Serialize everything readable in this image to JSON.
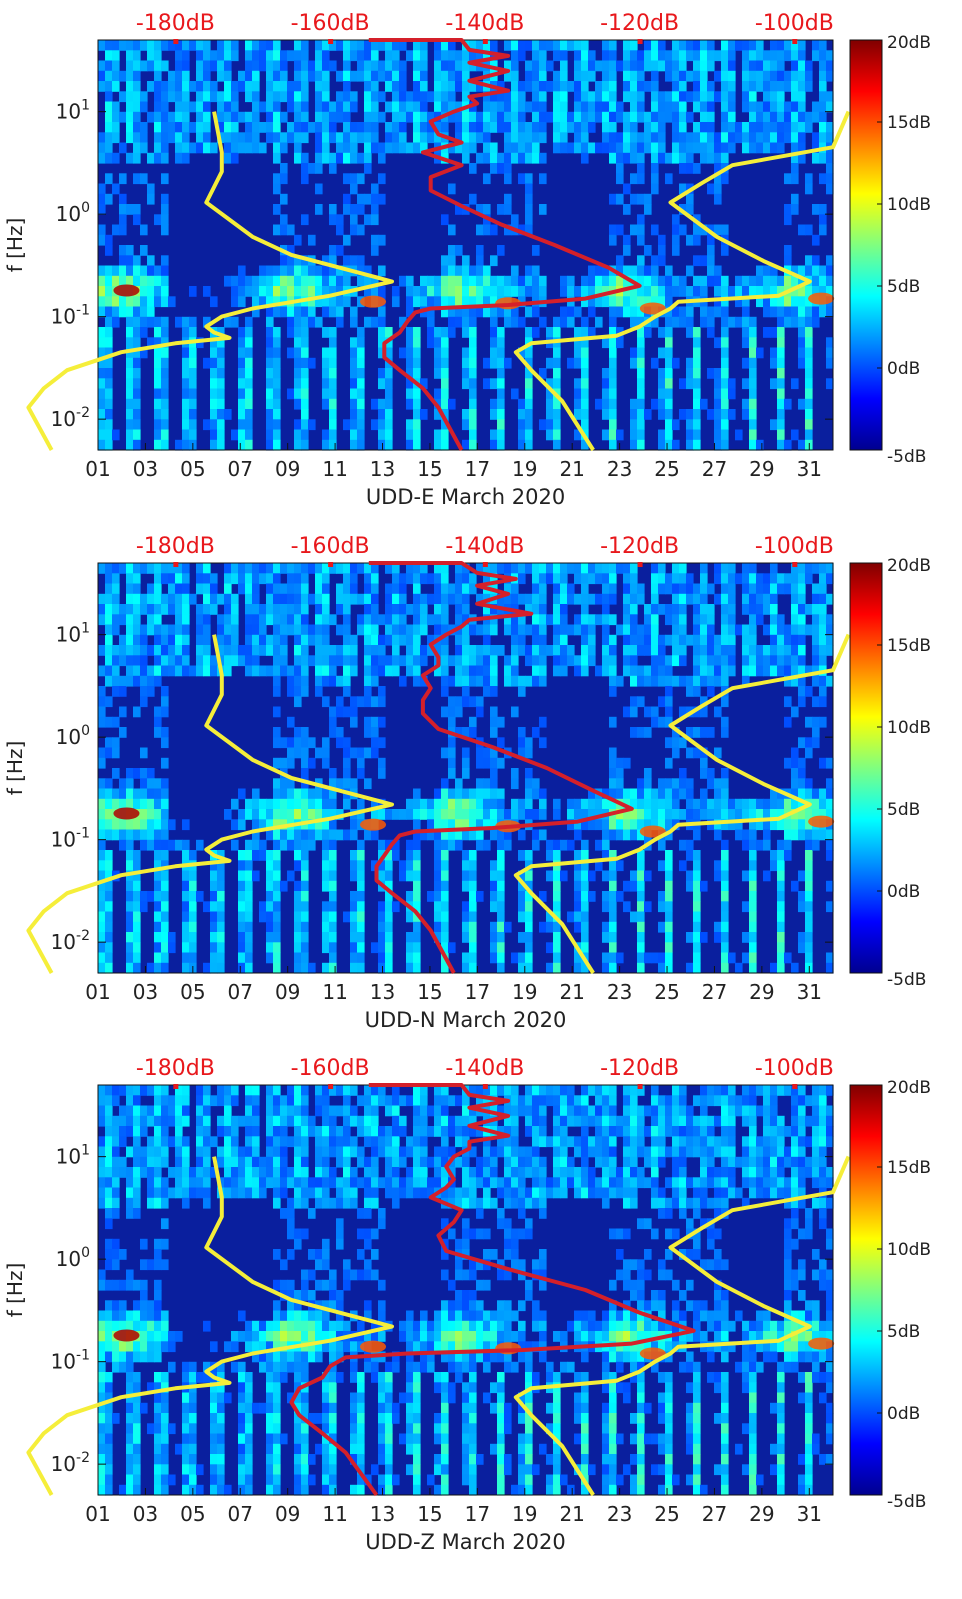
{
  "chart_data": [
    {
      "type": "heatmap",
      "title": "",
      "xlabel": "UDD-E March 2020",
      "ylabel": "f [Hz]",
      "x_ticks": [
        "01",
        "03",
        "05",
        "07",
        "09",
        "11",
        "13",
        "15",
        "17",
        "19",
        "21",
        "23",
        "25",
        "27",
        "29",
        "31"
      ],
      "y_ticks": [
        "10^-2",
        "10^-1",
        "10^0",
        "10^1"
      ],
      "xlim": [
        1,
        32
      ],
      "ylim_hz": [
        0.005,
        50
      ],
      "colorbar_label_ticks": [
        "20dB",
        "15dB",
        "10dB",
        "5dB",
        "0dB",
        "-5dB"
      ],
      "colorbar_range_db": [
        -5,
        20
      ],
      "top_axis_ticks": [
        "-180dB",
        "-160dB",
        "-140dB",
        "-120dB",
        "-100dB"
      ],
      "top_axis_range_db": [
        -190,
        -95
      ],
      "colors": {
        "noise_model": "#f5ee3a",
        "psd_curve": "#d4202a",
        "top_axis": "#e8181c"
      },
      "series": [
        {
          "name": "noise-model-low",
          "color": "#f5ee3a",
          "points": [
            [
              -175,
              10
            ],
            [
              -174,
              4
            ],
            [
              -174,
              2.6
            ],
            [
              -176,
              1.3
            ],
            [
              -170,
              0.6
            ],
            [
              -165,
              0.4
            ],
            [
              -152,
              0.22
            ],
            [
              -160,
              0.16
            ],
            [
              -170,
              0.12
            ],
            [
              -174,
              0.1
            ],
            [
              -176,
              0.08
            ],
            [
              -175,
              0.07
            ],
            [
              -173,
              0.062
            ],
            [
              -180,
              0.055
            ],
            [
              -187,
              0.045
            ],
            [
              -194,
              0.03
            ],
            [
              -197,
              0.02
            ],
            [
              -199,
              0.013
            ],
            [
              -196,
              0.005
            ]
          ]
        },
        {
          "name": "noise-model-high",
          "color": "#f5ee3a",
          "points": [
            [
              -93,
              10
            ],
            [
              -95,
              4.5
            ],
            [
              -108,
              3
            ],
            [
              -112,
              2
            ],
            [
              -116,
              1.3
            ],
            [
              -110,
              0.6
            ],
            [
              -104,
              0.35
            ],
            [
              -98,
              0.22
            ],
            [
              -102,
              0.16
            ],
            [
              -115,
              0.14
            ],
            [
              -116,
              0.12
            ],
            [
              -118,
              0.1
            ],
            [
              -120,
              0.08
            ],
            [
              -123,
              0.065
            ],
            [
              -134,
              0.055
            ],
            [
              -136,
              0.045
            ],
            [
              -134,
              0.03
            ],
            [
              -130,
              0.015
            ],
            [
              -126,
              0.005
            ]
          ]
        },
        {
          "name": "psd-curve",
          "color": "#d4202a",
          "points": [
            [
              -155,
              50
            ],
            [
              -143,
              50
            ],
            [
              -142,
              40
            ],
            [
              -137,
              35
            ],
            [
              -142,
              30
            ],
            [
              -137,
              25
            ],
            [
              -142,
              20
            ],
            [
              -137,
              16
            ],
            [
              -142,
              14
            ],
            [
              -141,
              12
            ],
            [
              -144,
              10
            ],
            [
              -147,
              8
            ],
            [
              -146,
              6
            ],
            [
              -143,
              5
            ],
            [
              -148,
              4
            ],
            [
              -143,
              3
            ],
            [
              -147,
              2.3
            ],
            [
              -147,
              1.7
            ],
            [
              -143,
              1.2
            ],
            [
              -138,
              0.8
            ],
            [
              -131,
              0.5
            ],
            [
              -124,
              0.3
            ],
            [
              -120,
              0.2
            ],
            [
              -127,
              0.15
            ],
            [
              -137,
              0.13
            ],
            [
              -147,
              0.12
            ],
            [
              -149,
              0.11
            ],
            [
              -150,
              0.09
            ],
            [
              -151,
              0.07
            ],
            [
              -153,
              0.055
            ],
            [
              -153,
              0.04
            ],
            [
              -151,
              0.03
            ],
            [
              -148,
              0.02
            ],
            [
              -146,
              0.013
            ],
            [
              -143,
              0.005
            ]
          ]
        }
      ]
    },
    {
      "type": "heatmap",
      "title": "",
      "xlabel": "UDD-N March 2020",
      "ylabel": "f [Hz]",
      "x_ticks": [
        "01",
        "03",
        "05",
        "07",
        "09",
        "11",
        "13",
        "15",
        "17",
        "19",
        "21",
        "23",
        "25",
        "27",
        "29",
        "31"
      ],
      "y_ticks": [
        "10^-2",
        "10^-1",
        "10^0",
        "10^1"
      ],
      "xlim": [
        1,
        32
      ],
      "ylim_hz": [
        0.005,
        50
      ],
      "colorbar_label_ticks": [
        "20dB",
        "15dB",
        "10dB",
        "5dB",
        "0dB",
        "-5dB"
      ],
      "colorbar_range_db": [
        -5,
        20
      ],
      "top_axis_ticks": [
        "-180dB",
        "-160dB",
        "-140dB",
        "-120dB",
        "-100dB"
      ],
      "top_axis_range_db": [
        -190,
        -95
      ],
      "colors": {
        "noise_model": "#f5ee3a",
        "psd_curve": "#d4202a",
        "top_axis": "#e8181c"
      },
      "series": [
        {
          "name": "noise-model-low",
          "color": "#f5ee3a",
          "points": [
            [
              -175,
              10
            ],
            [
              -174,
              4
            ],
            [
              -174,
              2.6
            ],
            [
              -176,
              1.3
            ],
            [
              -170,
              0.6
            ],
            [
              -165,
              0.4
            ],
            [
              -152,
              0.22
            ],
            [
              -160,
              0.16
            ],
            [
              -170,
              0.12
            ],
            [
              -174,
              0.1
            ],
            [
              -176,
              0.08
            ],
            [
              -175,
              0.07
            ],
            [
              -173,
              0.062
            ],
            [
              -180,
              0.055
            ],
            [
              -187,
              0.045
            ],
            [
              -194,
              0.03
            ],
            [
              -197,
              0.02
            ],
            [
              -199,
              0.013
            ],
            [
              -196,
              0.005
            ]
          ]
        },
        {
          "name": "noise-model-high",
          "color": "#f5ee3a",
          "points": [
            [
              -93,
              10
            ],
            [
              -95,
              4.5
            ],
            [
              -108,
              3
            ],
            [
              -112,
              2
            ],
            [
              -116,
              1.3
            ],
            [
              -110,
              0.6
            ],
            [
              -104,
              0.35
            ],
            [
              -98,
              0.22
            ],
            [
              -102,
              0.16
            ],
            [
              -115,
              0.14
            ],
            [
              -116,
              0.12
            ],
            [
              -118,
              0.1
            ],
            [
              -120,
              0.08
            ],
            [
              -123,
              0.065
            ],
            [
              -134,
              0.055
            ],
            [
              -136,
              0.045
            ],
            [
              -134,
              0.03
            ],
            [
              -130,
              0.015
            ],
            [
              -126,
              0.005
            ]
          ]
        },
        {
          "name": "psd-curve",
          "color": "#d4202a",
          "points": [
            [
              -155,
              50
            ],
            [
              -143,
              50
            ],
            [
              -141,
              40
            ],
            [
              -136,
              35
            ],
            [
              -141,
              30
            ],
            [
              -137,
              25
            ],
            [
              -141,
              20
            ],
            [
              -134,
              16
            ],
            [
              -142,
              14
            ],
            [
              -143,
              12
            ],
            [
              -145,
              10
            ],
            [
              -147,
              8
            ],
            [
              -146,
              6
            ],
            [
              -146,
              5
            ],
            [
              -148,
              4
            ],
            [
              -147,
              3
            ],
            [
              -148,
              2.3
            ],
            [
              -148,
              1.7
            ],
            [
              -146,
              1.2
            ],
            [
              -139,
              0.8
            ],
            [
              -132,
              0.5
            ],
            [
              -126,
              0.3
            ],
            [
              -121,
              0.2
            ],
            [
              -128,
              0.15
            ],
            [
              -139,
              0.13
            ],
            [
              -149,
              0.12
            ],
            [
              -151,
              0.11
            ],
            [
              -152,
              0.09
            ],
            [
              -153,
              0.07
            ],
            [
              -154,
              0.055
            ],
            [
              -154,
              0.04
            ],
            [
              -152,
              0.03
            ],
            [
              -149,
              0.02
            ],
            [
              -147,
              0.013
            ],
            [
              -144,
              0.005
            ]
          ]
        }
      ]
    },
    {
      "type": "heatmap",
      "title": "",
      "xlabel": "UDD-Z March 2020",
      "ylabel": "f [Hz]",
      "x_ticks": [
        "01",
        "03",
        "05",
        "07",
        "09",
        "11",
        "13",
        "15",
        "17",
        "19",
        "21",
        "23",
        "25",
        "27",
        "29",
        "31"
      ],
      "y_ticks": [
        "10^-2",
        "10^-1",
        "10^0",
        "10^1"
      ],
      "xlim": [
        1,
        32
      ],
      "ylim_hz": [
        0.005,
        50
      ],
      "colorbar_label_ticks": [
        "20dB",
        "15dB",
        "10dB",
        "5dB",
        "0dB",
        "-5dB"
      ],
      "colorbar_range_db": [
        -5,
        20
      ],
      "top_axis_ticks": [
        "-180dB",
        "-160dB",
        "-140dB",
        "-120dB",
        "-100dB"
      ],
      "top_axis_range_db": [
        -190,
        -95
      ],
      "colors": {
        "noise_model": "#f5ee3a",
        "psd_curve": "#d4202a",
        "top_axis": "#e8181c"
      },
      "series": [
        {
          "name": "noise-model-low",
          "color": "#f5ee3a",
          "points": [
            [
              -175,
              10
            ],
            [
              -174,
              4
            ],
            [
              -174,
              2.6
            ],
            [
              -176,
              1.3
            ],
            [
              -170,
              0.6
            ],
            [
              -165,
              0.4
            ],
            [
              -152,
              0.22
            ],
            [
              -160,
              0.16
            ],
            [
              -170,
              0.12
            ],
            [
              -174,
              0.1
            ],
            [
              -176,
              0.08
            ],
            [
              -175,
              0.07
            ],
            [
              -173,
              0.062
            ],
            [
              -180,
              0.055
            ],
            [
              -187,
              0.045
            ],
            [
              -194,
              0.03
            ],
            [
              -197,
              0.02
            ],
            [
              -199,
              0.013
            ],
            [
              -196,
              0.005
            ]
          ]
        },
        {
          "name": "noise-model-high",
          "color": "#f5ee3a",
          "points": [
            [
              -93,
              10
            ],
            [
              -95,
              4.5
            ],
            [
              -108,
              3
            ],
            [
              -112,
              2
            ],
            [
              -116,
              1.3
            ],
            [
              -110,
              0.6
            ],
            [
              -104,
              0.35
            ],
            [
              -98,
              0.22
            ],
            [
              -102,
              0.16
            ],
            [
              -115,
              0.14
            ],
            [
              -116,
              0.12
            ],
            [
              -118,
              0.1
            ],
            [
              -120,
              0.08
            ],
            [
              -123,
              0.065
            ],
            [
              -134,
              0.055
            ],
            [
              -136,
              0.045
            ],
            [
              -134,
              0.03
            ],
            [
              -130,
              0.015
            ],
            [
              -126,
              0.005
            ]
          ]
        },
        {
          "name": "psd-curve",
          "color": "#d4202a",
          "points": [
            [
              -155,
              50
            ],
            [
              -143,
              50
            ],
            [
              -142,
              40
            ],
            [
              -137,
              35
            ],
            [
              -142,
              30
            ],
            [
              -137,
              25
            ],
            [
              -142,
              20
            ],
            [
              -137,
              16
            ],
            [
              -142,
              14
            ],
            [
              -142,
              12
            ],
            [
              -144,
              10
            ],
            [
              -145,
              8
            ],
            [
              -144,
              6
            ],
            [
              -145,
              5
            ],
            [
              -147,
              4
            ],
            [
              -143,
              3
            ],
            [
              -144,
              2.3
            ],
            [
              -146,
              1.7
            ],
            [
              -145,
              1.2
            ],
            [
              -137,
              0.8
            ],
            [
              -127,
              0.5
            ],
            [
              -120,
              0.3
            ],
            [
              -113,
              0.2
            ],
            [
              -121,
              0.15
            ],
            [
              -135,
              0.13
            ],
            [
              -150,
              0.12
            ],
            [
              -158,
              0.11
            ],
            [
              -160,
              0.09
            ],
            [
              -161,
              0.07
            ],
            [
              -164,
              0.055
            ],
            [
              -165,
              0.04
            ],
            [
              -164,
              0.03
            ],
            [
              -161,
              0.02
            ],
            [
              -158,
              0.013
            ],
            [
              -154,
              0.005
            ]
          ]
        }
      ]
    }
  ]
}
